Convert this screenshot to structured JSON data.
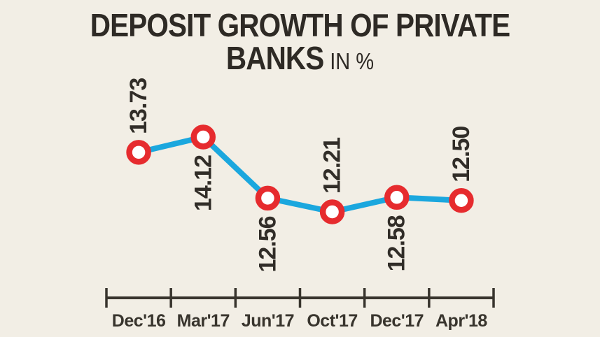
{
  "title": {
    "line1": "DEPOSIT GROWTH OF PRIVATE",
    "line2_main": "BANKS",
    "line2_unit": "IN %"
  },
  "chart_data": {
    "type": "line",
    "title": "DEPOSIT GROWTH OF PRIVATE BANKS",
    "unit": "IN %",
    "categories": [
      "Dec'16",
      "Mar'17",
      "Jun'17",
      "Oct'17",
      "Dec'17",
      "Apr'18"
    ],
    "values": [
      13.73,
      14.12,
      12.56,
      12.21,
      12.58,
      12.5
    ],
    "value_labels": [
      "13.73",
      "14.12",
      "12.56",
      "12.21",
      "12.58",
      "12.50"
    ],
    "label_positions": [
      "above",
      "below",
      "below",
      "above",
      "below",
      "above"
    ],
    "ylim": [
      12.21,
      14.12
    ],
    "grid": false,
    "legend": false,
    "axes_shown": "x-only",
    "value_label_rotation": -90,
    "colors": {
      "background": "#f2eee5",
      "line": "#1ba7de",
      "marker_ring": "#e62b2e",
      "marker_fill": "#ffffff",
      "axis_line": "#38342d",
      "text": "#312d28"
    }
  }
}
